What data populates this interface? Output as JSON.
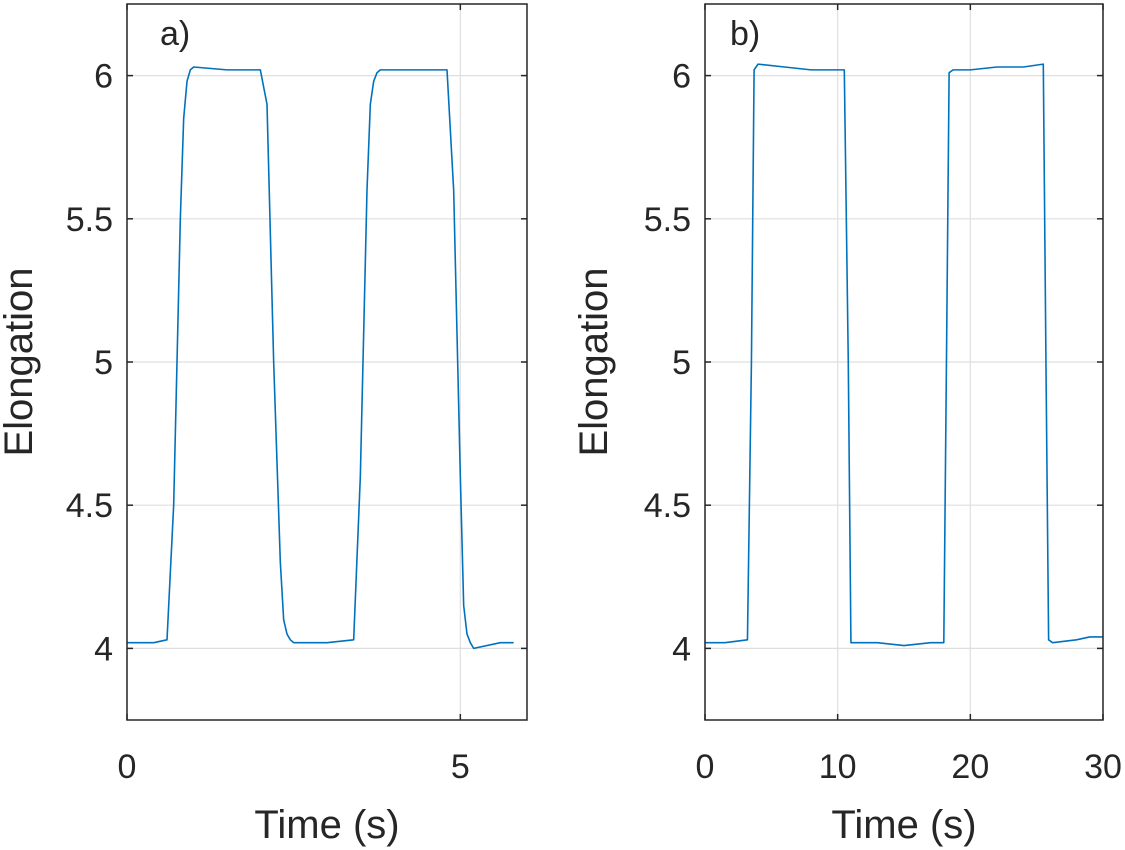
{
  "series_color": "#0072BD",
  "chart_data": [
    {
      "type": "line",
      "panel_label": "a)",
      "xlabel": "Time (s)",
      "ylabel": "Elongation",
      "xlim": [
        0,
        6
      ],
      "ylim": [
        3.75,
        6.25
      ],
      "xticks": [
        0,
        5
      ],
      "xtick_labels": [
        "0",
        "5"
      ],
      "yticks": [
        4,
        4.5,
        5,
        5.5,
        6
      ],
      "ytick_labels": [
        "4",
        "4.5",
        "5",
        "5.5",
        "6"
      ],
      "grid": true,
      "series": [
        {
          "x": [
            0,
            0.4,
            0.6,
            0.7,
            0.8,
            0.85,
            0.9,
            0.95,
            1.0,
            1.5,
            2.0,
            2.1,
            2.2,
            2.3,
            2.35,
            2.4,
            2.45,
            2.5,
            3.0,
            3.4,
            3.5,
            3.6,
            3.65,
            3.7,
            3.75,
            3.8,
            4.0,
            4.5,
            4.8,
            4.9,
            5.0,
            5.05,
            5.1,
            5.15,
            5.2,
            5.6,
            5.8
          ],
          "y": [
            4.02,
            4.02,
            4.03,
            4.5,
            5.5,
            5.85,
            5.98,
            6.02,
            6.03,
            6.02,
            6.02,
            5.9,
            5.0,
            4.3,
            4.1,
            4.05,
            4.03,
            4.02,
            4.02,
            4.03,
            4.6,
            5.6,
            5.9,
            5.98,
            6.01,
            6.02,
            6.02,
            6.02,
            6.02,
            5.6,
            4.6,
            4.15,
            4.05,
            4.02,
            4.0,
            4.02,
            4.02
          ]
        }
      ]
    },
    {
      "type": "line",
      "panel_label": "b)",
      "xlabel": "Time (s)",
      "ylabel": "Elongation",
      "xlim": [
        0,
        30
      ],
      "ylim": [
        3.75,
        6.25
      ],
      "xticks": [
        0,
        10,
        20,
        30
      ],
      "xtick_labels": [
        "0",
        "10",
        "20",
        "30"
      ],
      "yticks": [
        4,
        4.5,
        5,
        5.5,
        6
      ],
      "ytick_labels": [
        "4",
        "4.5",
        "5",
        "5.5",
        "6"
      ],
      "grid": true,
      "series": [
        {
          "x": [
            0,
            1.5,
            3.2,
            3.5,
            3.7,
            4.0,
            6.0,
            8.0,
            10.5,
            10.8,
            11.0,
            11.2,
            11.5,
            13.0,
            15.0,
            17.0,
            18.0,
            18.2,
            18.4,
            18.7,
            20.0,
            22.0,
            24.0,
            25.5,
            25.7,
            25.9,
            26.2,
            28.0,
            29.0,
            30.0
          ],
          "y": [
            4.02,
            4.02,
            4.03,
            5.0,
            6.02,
            6.04,
            6.03,
            6.02,
            6.02,
            5.0,
            4.02,
            4.02,
            4.02,
            4.02,
            4.01,
            4.02,
            4.02,
            5.0,
            6.01,
            6.02,
            6.02,
            6.03,
            6.03,
            6.04,
            5.0,
            4.03,
            4.02,
            4.03,
            4.04,
            4.04
          ]
        }
      ]
    }
  ]
}
